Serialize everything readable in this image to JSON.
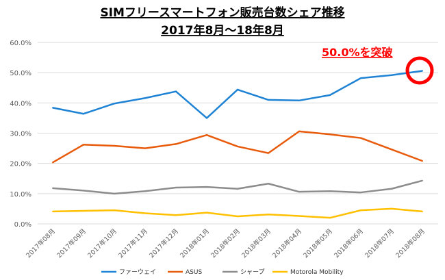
{
  "chart_data": {
    "type": "line",
    "title": "SIMフリースマートフォン販売台数シェア推移",
    "subtitle": "2017年8月〜18年8月",
    "xlabel": "",
    "ylabel": "",
    "ylim": [
      0,
      60
    ],
    "yticks": [
      "0.0%",
      "10.0%",
      "20.0%",
      "30.0%",
      "40.0%",
      "50.0%",
      "60.0%"
    ],
    "grid": true,
    "legend_position": "bottom",
    "categories": [
      "2017年08月",
      "2017年09月",
      "2017年10月",
      "2017年11月",
      "2017年12月",
      "2018年01月",
      "2018年02月",
      "2018年03月",
      "2018年04月",
      "2018年05月",
      "2018年06月",
      "2018年07月",
      "2018年08月"
    ],
    "series": [
      {
        "name": "ファーウェイ",
        "color": "#1f83d5",
        "values": [
          38.4,
          36.4,
          39.8,
          41.6,
          43.8,
          35.0,
          44.4,
          41.0,
          40.8,
          42.6,
          48.2,
          49.2,
          50.6
        ]
      },
      {
        "name": "ASUS",
        "color": "#e85a0c",
        "values": [
          20.3,
          26.2,
          25.8,
          25.0,
          26.4,
          29.4,
          25.6,
          23.4,
          30.6,
          29.6,
          28.4,
          24.6,
          20.8
        ]
      },
      {
        "name": "シャープ",
        "color": "#8c8c8c",
        "values": [
          11.8,
          11.0,
          10.0,
          10.8,
          12.0,
          12.2,
          11.6,
          13.3,
          10.6,
          10.8,
          10.4,
          11.6,
          14.3
        ]
      },
      {
        "name": "Motorola Mobility",
        "color": "#ffc000",
        "values": [
          4.1,
          4.3,
          4.5,
          3.5,
          2.9,
          3.7,
          2.5,
          3.1,
          2.6,
          2.0,
          4.5,
          5.0,
          4.1
        ]
      }
    ],
    "annotation": {
      "text": "50.0%を突破",
      "color": "#ff0000"
    }
  }
}
